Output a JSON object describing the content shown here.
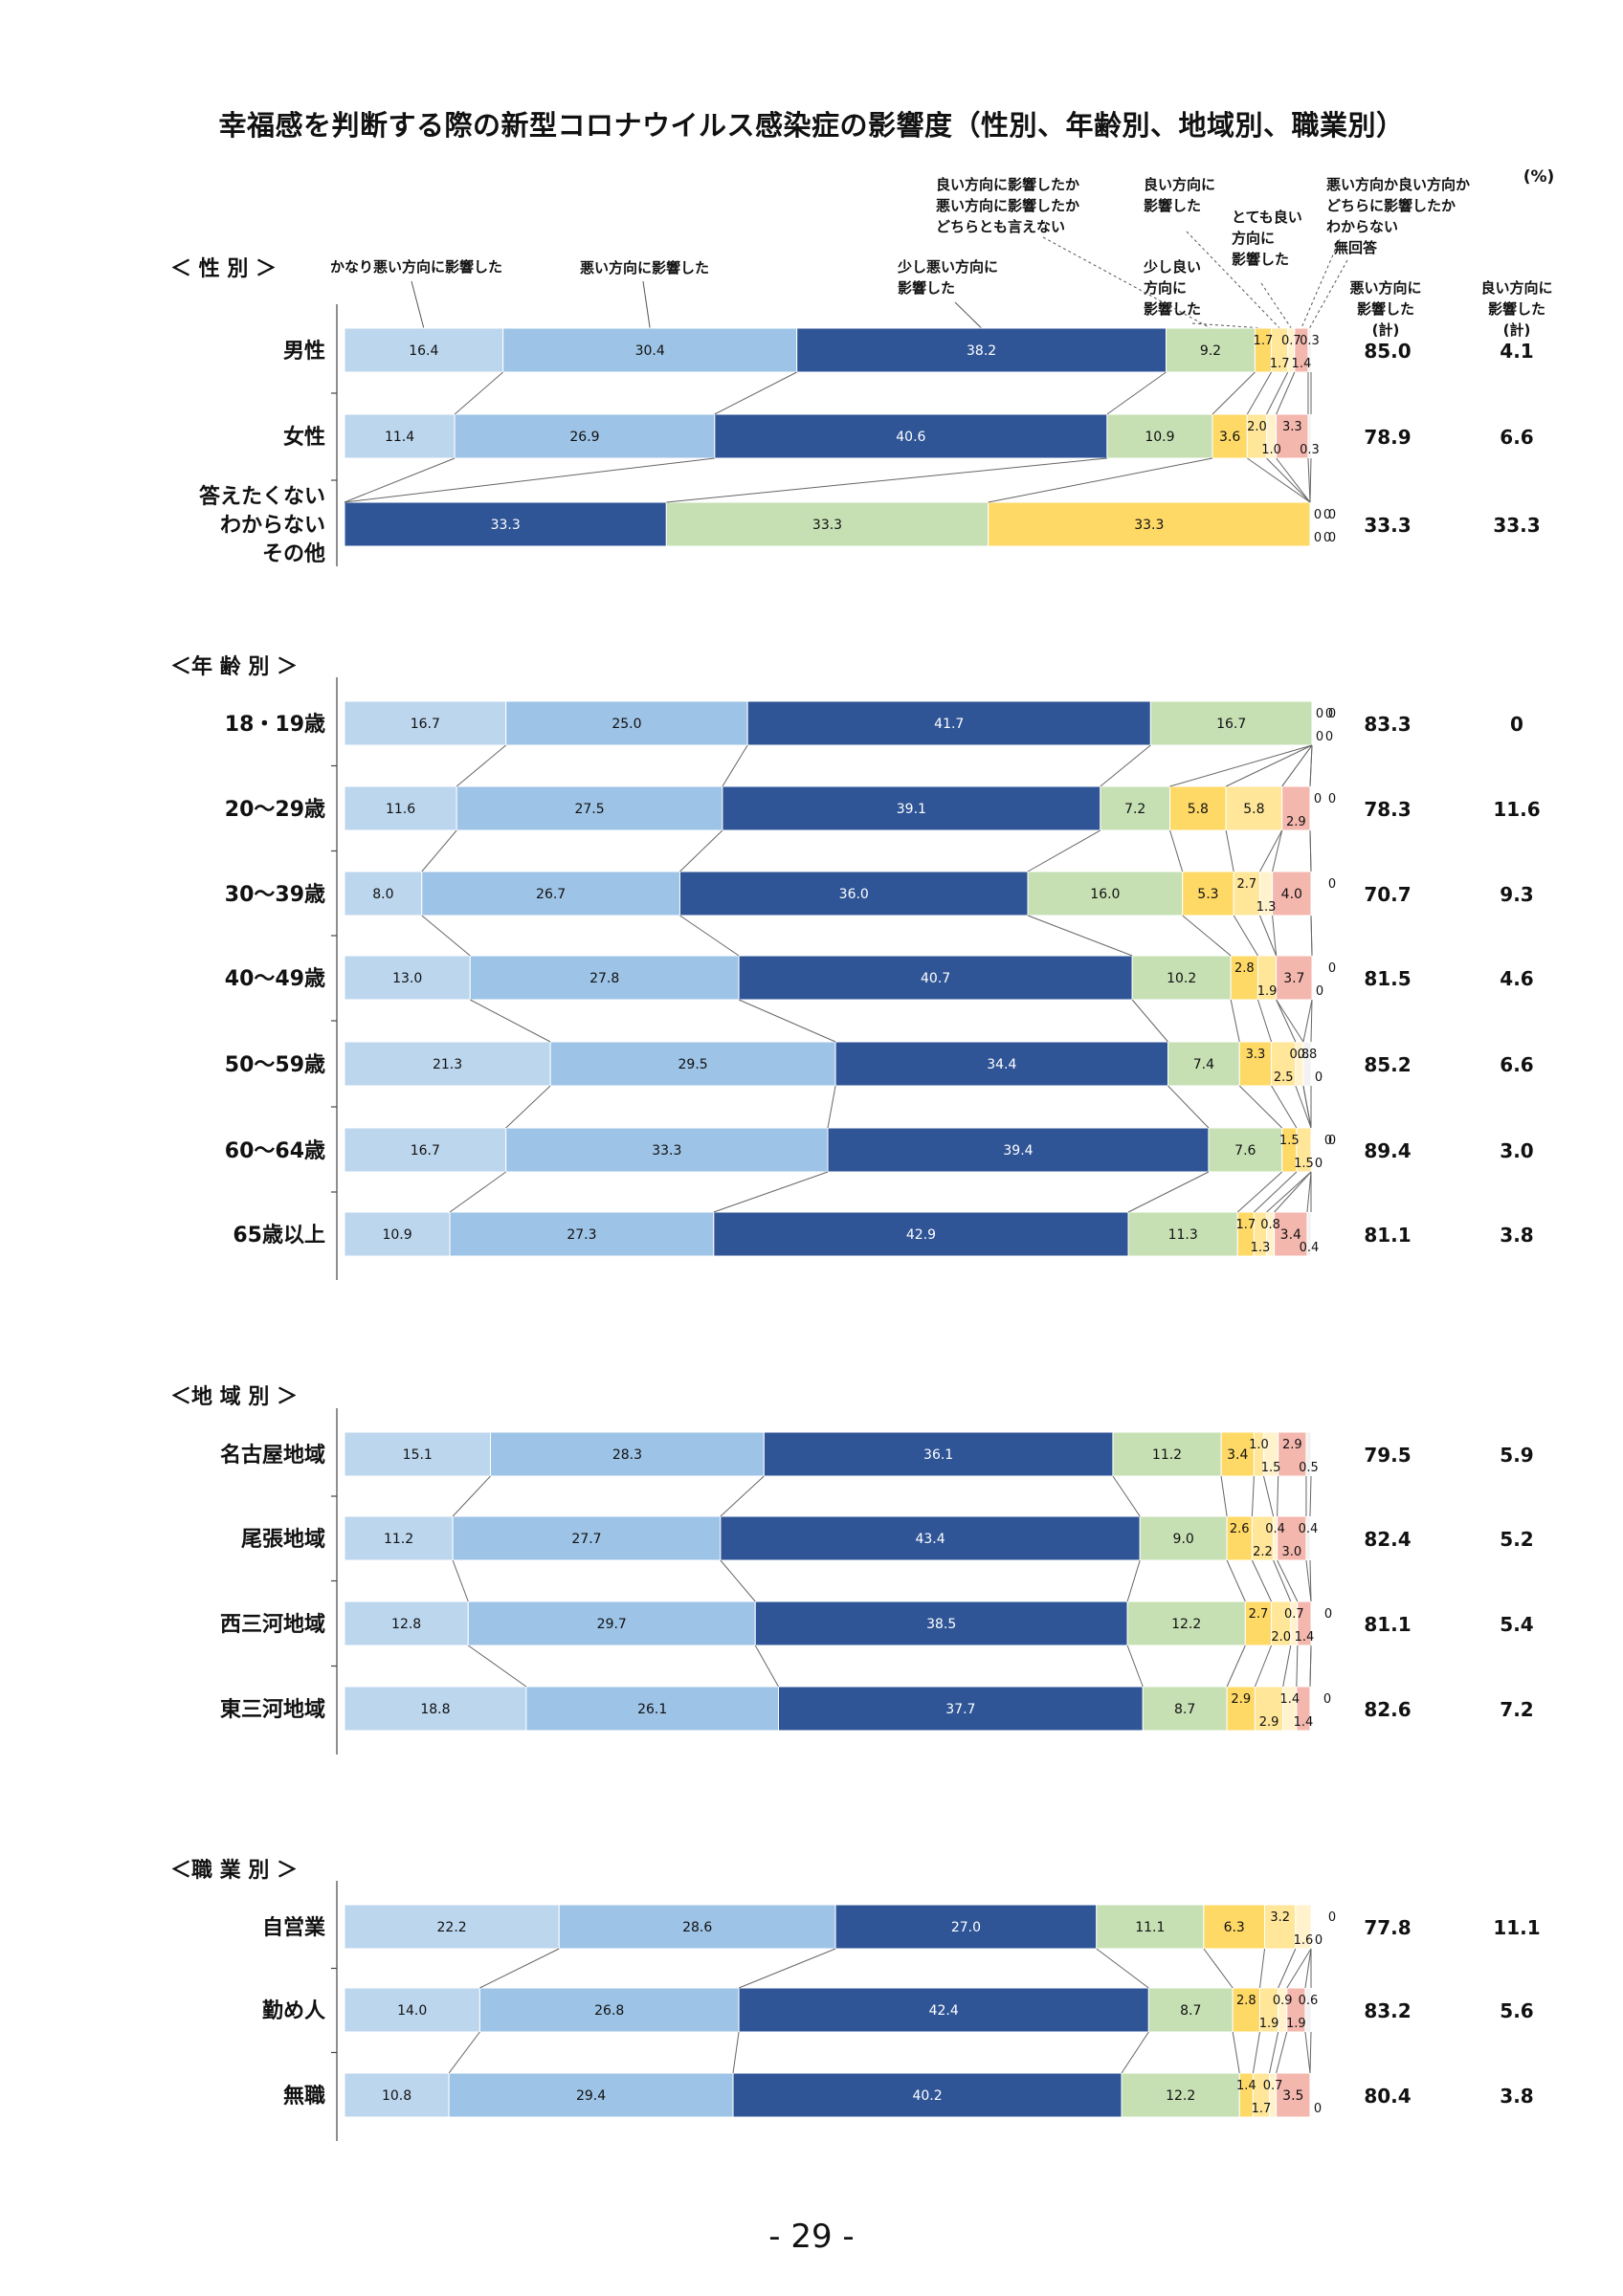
{
  "page": {
    "title": "幸福感を判断する際の新型コロナウイルス感染症の影響度（性別、年齢別、地域別、職業別）",
    "page_number": "- 29 -",
    "unit": "(%)"
  },
  "legend": {
    "categories": [
      "かなり悪い方向に影響した",
      "悪い方向に影響した",
      "少し悪い方向に影響した",
      "良い方向に影響したか悪い方向に影響したかどちらとも言えない",
      "少し良い方向に影響した",
      "良い方向に影響した",
      "とても良い方向に影響した",
      "悪い方向か良い方向かどちらに影響したかわからない",
      "無回答"
    ],
    "header_lines": {
      "c0": [
        "かなり悪い方向に影響した"
      ],
      "c1": [
        "悪い方向に影響した"
      ],
      "c2": [
        "少し悪い方向に",
        "影響した"
      ],
      "c3": [
        "良い方向に影響したか",
        "悪い方向に影響したか",
        "どちらとも言えない"
      ],
      "c4": [
        "少し良い",
        "方向に",
        "影響した"
      ],
      "c5": [
        "良い方向に",
        "影響した"
      ],
      "c6": [
        "とても良い",
        "方向に",
        "影響した"
      ],
      "c7": [
        "悪い方向か良い方向か",
        "どちらに影響したか",
        "わからない"
      ],
      "c8": [
        "無回答"
      ]
    },
    "sum_headers": {
      "bad": [
        "悪い方向に",
        "影響した",
        "(計)"
      ],
      "good": [
        "良い方向に",
        "影響した",
        "(計)"
      ]
    }
  },
  "colors": [
    "#bcd6ee",
    "#9dc3e6",
    "#2f5597",
    "#c6e0b4",
    "#ffd966",
    "#ffe699",
    "#fff2cc",
    "#f4b7ae",
    "#f2f2f2"
  ],
  "chart_data": {
    "type": "stacked-bar-horizontal",
    "xlim": [
      0,
      100
    ],
    "groups": [
      {
        "title": "＜ 性 別 ＞",
        "rows": [
          {
            "label": [
              "男性"
            ],
            "values": [
              16.4,
              30.4,
              38.2,
              9.2,
              1.7,
              1.7,
              0.7,
              1.4,
              0.3
            ],
            "labels": [
              "16.4",
              "30.4",
              "38.2",
              "9.2",
              "1.7",
              "1.7",
              "0.7",
              "1.4",
              "0.3"
            ],
            "bad_total": "85.0",
            "good_total": "4.1"
          },
          {
            "label": [
              "女性"
            ],
            "values": [
              11.4,
              26.9,
              40.6,
              10.9,
              3.6,
              2.0,
              1.0,
              3.3,
              0.3
            ],
            "labels": [
              "11.4",
              "26.9",
              "40.6",
              "10.9",
              "3.6",
              "2.0",
              "1.0",
              "3.3",
              "0.3"
            ],
            "bad_total": "78.9",
            "good_total": "6.6"
          },
          {
            "label": [
              "答えたくない",
              "わからない",
              "その他"
            ],
            "values": [
              0,
              0,
              33.3,
              33.3,
              33.3,
              0,
              0,
              0,
              0
            ],
            "labels": [
              "0",
              "0",
              "33.3",
              "33.3",
              "33.3",
              "0",
              "0",
              "0",
              "0"
            ],
            "bad_total": "33.3",
            "good_total": "33.3"
          }
        ]
      },
      {
        "title": "＜年 齢 別 ＞",
        "rows": [
          {
            "label": [
              "18・19歳"
            ],
            "values": [
              16.7,
              25.0,
              41.7,
              16.7,
              0,
              0,
              0,
              0,
              0
            ],
            "labels": [
              "16.7",
              "25.0",
              "41.7",
              "16.7",
              "0",
              "0",
              "0",
              "0",
              "0"
            ],
            "bad_total": "83.3",
            "good_total": "0"
          },
          {
            "label": [
              "20～29歳"
            ],
            "values": [
              11.6,
              27.5,
              39.1,
              7.2,
              5.8,
              5.8,
              0,
              2.9,
              0
            ],
            "labels": [
              "11.6",
              "27.5",
              "39.1",
              "7.2",
              "5.8",
              "5.8",
              "0",
              "2.9",
              "0"
            ],
            "bad_total": "78.3",
            "good_total": "11.6"
          },
          {
            "label": [
              "30～39歳"
            ],
            "values": [
              8.0,
              26.7,
              36.0,
              16.0,
              5.3,
              2.7,
              1.3,
              4.0,
              0
            ],
            "labels": [
              "8.0",
              "26.7",
              "36.0",
              "16.0",
              "5.3",
              "2.7",
              "1.3",
              "4.0",
              "0"
            ],
            "bad_total": "70.7",
            "good_total": "9.3"
          },
          {
            "label": [
              "40～49歳"
            ],
            "values": [
              13.0,
              27.8,
              40.7,
              10.2,
              2.8,
              1.9,
              0,
              3.7,
              0
            ],
            "labels": [
              "13.0",
              "27.8",
              "40.7",
              "10.2",
              "2.8",
              "1.9",
              "0",
              "3.7",
              "0"
            ],
            "bad_total": "81.5",
            "good_total": "4.6"
          },
          {
            "label": [
              "50～59歳"
            ],
            "values": [
              21.3,
              29.5,
              34.4,
              7.4,
              3.3,
              2.5,
              0.8,
              0,
              0.8
            ],
            "labels": [
              "21.3",
              "29.5",
              "34.4",
              "7.4",
              "3.3",
              "2.5",
              "0.8",
              "0",
              "0.8"
            ],
            "bad_total": "85.2",
            "good_total": "6.6"
          },
          {
            "label": [
              "60～64歳"
            ],
            "values": [
              16.7,
              33.3,
              39.4,
              7.6,
              1.5,
              1.5,
              0,
              0,
              0
            ],
            "labels": [
              "16.7",
              "33.3",
              "39.4",
              "7.6",
              "1.5",
              "1.5",
              "0",
              "0",
              "0"
            ],
            "bad_total": "89.4",
            "good_total": "3.0"
          },
          {
            "label": [
              "65歳以上"
            ],
            "values": [
              10.9,
              27.3,
              42.9,
              11.3,
              1.7,
              1.3,
              0.8,
              3.4,
              0.4
            ],
            "labels": [
              "10.9",
              "27.3",
              "42.9",
              "11.3",
              "1.7",
              "1.3",
              "0.8",
              "3.4",
              "0.4"
            ],
            "bad_total": "81.1",
            "good_total": "3.8"
          }
        ]
      },
      {
        "title": "＜地 域 別 ＞",
        "rows": [
          {
            "label": [
              "名古屋地域"
            ],
            "values": [
              15.1,
              28.3,
              36.1,
              11.2,
              3.4,
              1.0,
              1.5,
              2.9,
              0.5
            ],
            "labels": [
              "15.1",
              "28.3",
              "36.1",
              "11.2",
              "3.4",
              "1.0",
              "1.5",
              "2.9",
              "0.5"
            ],
            "bad_total": "79.5",
            "good_total": "5.9"
          },
          {
            "label": [
              "尾張地域"
            ],
            "values": [
              11.2,
              27.7,
              43.4,
              9.0,
              2.6,
              2.2,
              0.4,
              3.0,
              0.4
            ],
            "labels": [
              "11.2",
              "27.7",
              "43.4",
              "9.0",
              "2.6",
              "2.2",
              "0.4",
              "3.0",
              "0.4"
            ],
            "bad_total": "82.4",
            "good_total": "5.2"
          },
          {
            "label": [
              "西三河地域"
            ],
            "values": [
              12.8,
              29.7,
              38.5,
              12.2,
              2.7,
              2.0,
              0.7,
              1.4,
              0
            ],
            "labels": [
              "12.8",
              "29.7",
              "38.5",
              "12.2",
              "2.7",
              "2.0",
              "0.7",
              "1.4",
              "0"
            ],
            "bad_total": "81.1",
            "good_total": "5.4"
          },
          {
            "label": [
              "東三河地域"
            ],
            "values": [
              18.8,
              26.1,
              37.7,
              8.7,
              2.9,
              2.9,
              1.4,
              1.4,
              0
            ],
            "labels": [
              "18.8",
              "26.1",
              "37.7",
              "8.7",
              "2.9",
              "2.9",
              "1.4",
              "1.4",
              "0"
            ],
            "bad_total": "82.6",
            "good_total": "7.2"
          }
        ]
      },
      {
        "title": "＜職 業 別 ＞",
        "rows": [
          {
            "label": [
              "自営業"
            ],
            "values": [
              22.2,
              28.6,
              27.0,
              11.1,
              6.3,
              3.2,
              1.6,
              0,
              0
            ],
            "labels": [
              "22.2",
              "28.6",
              "27.0",
              "11.1",
              "6.3",
              "3.2",
              "1.6",
              "0",
              "0"
            ],
            "bad_total": "77.8",
            "good_total": "11.1"
          },
          {
            "label": [
              "勤め人"
            ],
            "values": [
              14.0,
              26.8,
              42.4,
              8.7,
              2.8,
              1.9,
              0.9,
              1.9,
              0.6
            ],
            "labels": [
              "14.0",
              "26.8",
              "42.4",
              "8.7",
              "2.8",
              "1.9",
              "0.9",
              "1.9",
              "0.6"
            ],
            "bad_total": "83.2",
            "good_total": "5.6"
          },
          {
            "label": [
              "無職"
            ],
            "values": [
              10.8,
              29.4,
              40.2,
              12.2,
              1.4,
              1.7,
              0.7,
              3.5,
              0
            ],
            "labels": [
              "10.8",
              "29.4",
              "40.2",
              "12.2",
              "1.4",
              "1.7",
              "0.7",
              "3.5",
              "0"
            ],
            "bad_total": "80.4",
            "good_total": "3.8"
          }
        ]
      }
    ]
  }
}
